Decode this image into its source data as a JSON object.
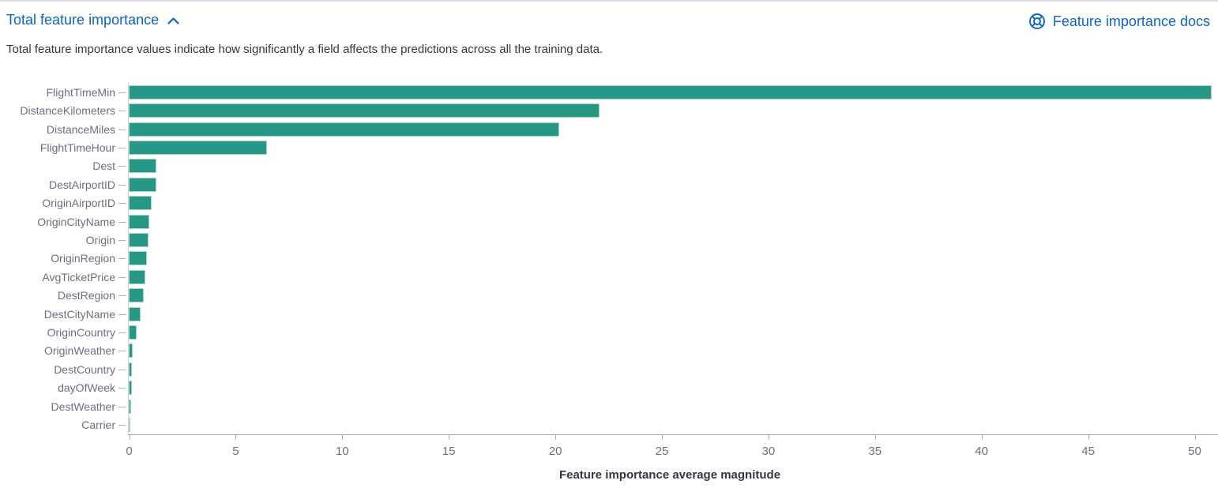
{
  "panel": {
    "title": "Total feature importance",
    "collapse_icon": "chevron-up-icon",
    "docs_link": {
      "label": "Feature importance docs",
      "icon": "life-buoy-icon"
    },
    "subtitle": "Total feature importance values indicate how significantly a field affects the predictions across all the training data."
  },
  "colors": {
    "link_blue": "#0b64c4",
    "bar_fill": "#269784",
    "bar_border": "#a5d9ce",
    "axis_label_gray": "#69707d",
    "axis_line_gray": "#a2aabc",
    "subtitle_text": "#343741",
    "top_border": "#d6dbe9"
  },
  "chart_data": {
    "type": "bar",
    "orientation": "horizontal",
    "title": "",
    "xlabel": "Feature importance average magnitude",
    "ylabel": "",
    "xlim": [
      0,
      51.1
    ],
    "x_ticks": [
      0,
      5,
      10,
      15,
      20,
      25,
      30,
      35,
      40,
      45,
      50
    ],
    "grid": "off",
    "legend": "off",
    "categories": [
      "FlightTimeMin",
      "DistanceKilometers",
      "DistanceMiles",
      "FlightTimeHour",
      "Dest",
      "DestAirportID",
      "OriginAirportID",
      "OriginCityName",
      "Origin",
      "OriginRegion",
      "AvgTicketPrice",
      "DestRegion",
      "DestCityName",
      "OriginCountry",
      "OriginWeather",
      "DestCountry",
      "dayOfWeek",
      "DestWeather",
      "Carrier"
    ],
    "values": [
      50.8,
      22.1,
      20.2,
      6.5,
      1.31,
      1.29,
      1.06,
      0.95,
      0.94,
      0.86,
      0.78,
      0.71,
      0.57,
      0.37,
      0.17,
      0.15,
      0.13,
      0.11,
      0.03
    ]
  }
}
